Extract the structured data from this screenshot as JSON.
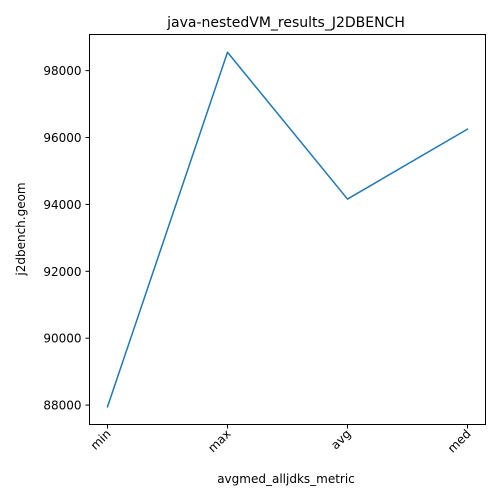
{
  "chart_data": {
    "type": "line",
    "title": "java-nestedVM_results_J2DBENCH",
    "xlabel": "avgmed_alljdks_metric",
    "ylabel": "j2dbench.geom",
    "categories": [
      "min",
      "max",
      "avg",
      "med"
    ],
    "series": [
      {
        "values": [
          87950,
          98550,
          94160,
          96250
        ],
        "color": "#1f77b4"
      }
    ],
    "ylim": [
      87420,
      99080
    ],
    "yticks": [
      88000,
      90000,
      92000,
      94000,
      96000,
      98000
    ],
    "ytick_labels": [
      "88000",
      "90000",
      "92000",
      "94000",
      "96000",
      "98000"
    ],
    "grid": false,
    "legend": false
  }
}
